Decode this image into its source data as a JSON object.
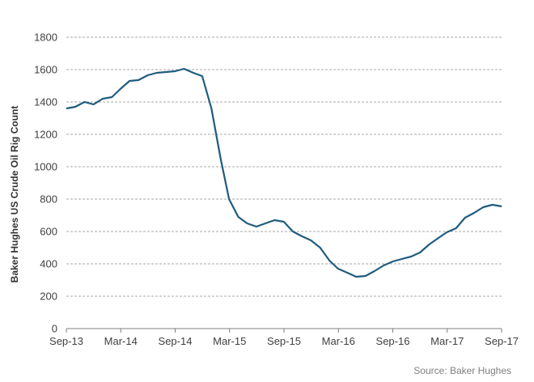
{
  "chart_data": {
    "type": "line",
    "title": "",
    "xlabel": "",
    "ylabel": "Baker Hughes US Crude Oil Rig Count",
    "ylim": [
      0,
      1800
    ],
    "yticks": [
      "0",
      "200",
      "400",
      "600",
      "800",
      "1000",
      "1200",
      "1400",
      "1600",
      "1800"
    ],
    "xticks": [
      "Sep-13",
      "Mar-14",
      "Sep-14",
      "Mar-15",
      "Sep-15",
      "Mar-16",
      "Sep-16",
      "Mar-17",
      "Sep-17"
    ],
    "grid": "horizontal dashed",
    "legend": "none",
    "line_color": "#1F5C7F",
    "source": "Source: Baker Hughes",
    "series": [
      {
        "x": [
          "2013-09-01",
          "2013-10-01",
          "2013-11-01",
          "2013-12-01",
          "2014-01-01",
          "2014-02-01",
          "2014-03-01",
          "2014-04-01",
          "2014-05-01",
          "2014-06-01",
          "2014-07-01",
          "2014-08-01",
          "2014-09-01",
          "2014-10-01",
          "2014-11-01",
          "2014-12-01",
          "2015-01-01",
          "2015-02-01",
          "2015-03-01",
          "2015-04-01",
          "2015-05-01",
          "2015-06-01",
          "2015-07-01",
          "2015-08-01",
          "2015-09-01",
          "2015-10-01",
          "2015-11-01",
          "2015-12-01",
          "2016-01-01",
          "2016-02-01",
          "2016-03-01",
          "2016-04-01",
          "2016-05-01",
          "2016-06-01",
          "2016-07-01",
          "2016-08-01",
          "2016-09-01",
          "2016-10-01",
          "2016-11-01",
          "2016-12-01",
          "2017-01-01",
          "2017-02-01",
          "2017-03-01",
          "2017-04-01",
          "2017-05-01",
          "2017-06-01",
          "2017-07-01",
          "2017-08-01",
          "2017-09-01"
        ],
        "values": [
          1360,
          1370,
          1400,
          1385,
          1420,
          1430,
          1480,
          1530,
          1535,
          1565,
          1580,
          1585,
          1590,
          1605,
          1580,
          1560,
          1360,
          1050,
          800,
          690,
          650,
          630,
          650,
          670,
          660,
          600,
          570,
          545,
          500,
          420,
          370,
          345,
          320,
          325,
          355,
          390,
          415,
          430,
          445,
          470,
          520,
          560,
          595,
          620,
          685,
          715,
          750,
          765,
          755
        ]
      }
    ]
  }
}
